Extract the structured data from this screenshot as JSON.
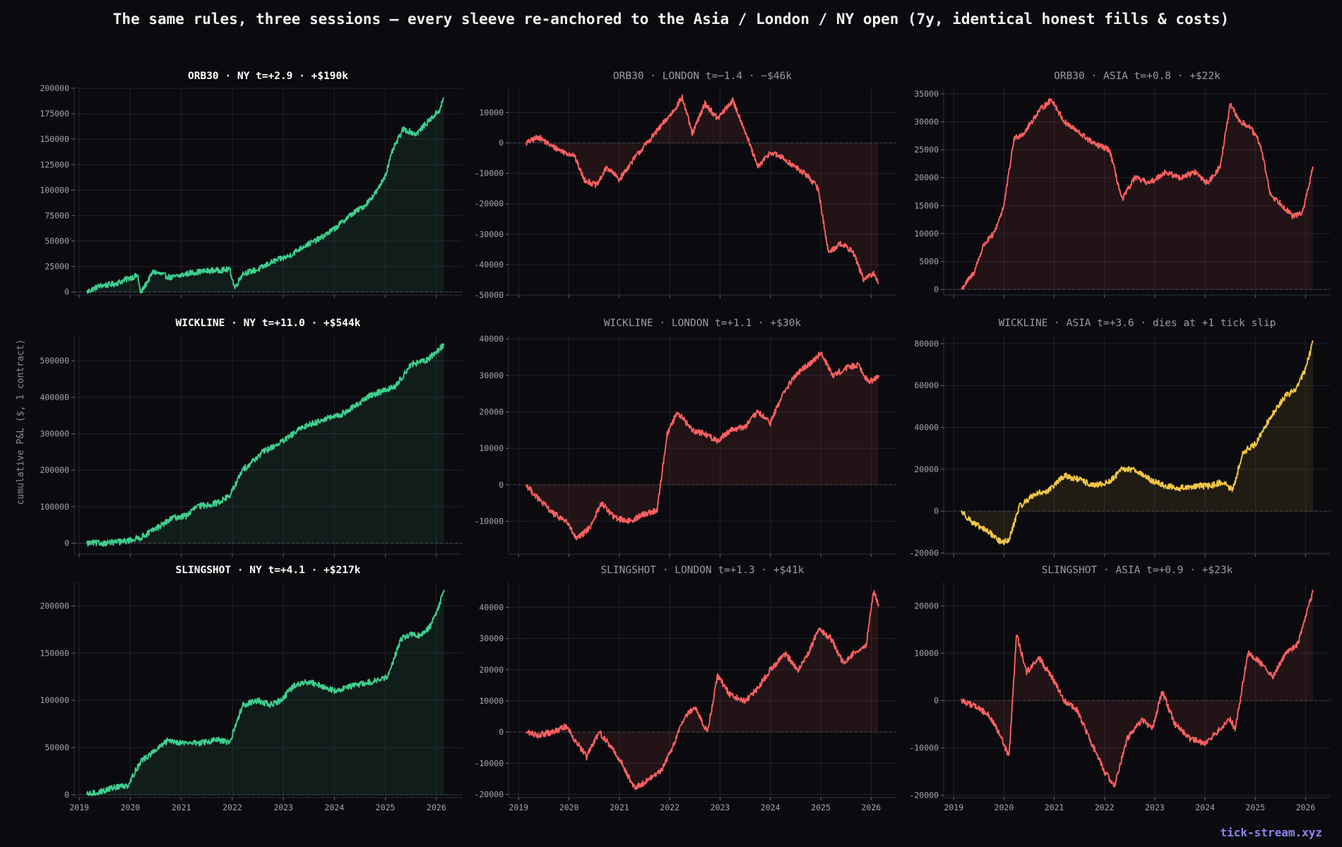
{
  "figure": {
    "title": "The same rules, three sessions — every sleeve re-anchored to the Asia / London / NY open (7y, identical honest fills & costs)",
    "ylabel": "cumulative P&L ($, 1 contract)",
    "watermark": "tick-stream.xyz"
  },
  "chart_data": [
    {
      "id": "orb30-ny",
      "type": "line",
      "title": "ORB30 · NY   t=+2.9 · +$190k",
      "emphasis": true,
      "color": "#3ecf8e",
      "fill": true,
      "xlim": [
        2018.9,
        2026.5
      ],
      "ylim": [
        -3000,
        200000
      ],
      "yticks": [
        0,
        25000,
        50000,
        75000,
        100000,
        125000,
        150000,
        175000,
        200000
      ],
      "xticks": [
        2019,
        2020,
        2021,
        2022,
        2023,
        2024,
        2025,
        2026
      ],
      "x": [
        2019.15,
        2019.4,
        2019.7,
        2020.0,
        2020.15,
        2020.2,
        2020.45,
        2020.8,
        2021.2,
        2021.6,
        2021.95,
        2022.05,
        2022.2,
        2022.5,
        2022.8,
        2023.1,
        2023.4,
        2023.7,
        2024.0,
        2024.3,
        2024.6,
        2024.85,
        2025.0,
        2025.15,
        2025.35,
        2025.6,
        2025.85,
        2026.05,
        2026.15
      ],
      "y": [
        0,
        6000,
        8000,
        14000,
        16000,
        -1500,
        20000,
        14000,
        19000,
        21000,
        22000,
        4000,
        18000,
        22000,
        30000,
        35000,
        45000,
        52000,
        62000,
        75000,
        85000,
        100000,
        115000,
        140000,
        160000,
        155000,
        168000,
        178000,
        190000
      ]
    },
    {
      "id": "orb30-london",
      "type": "line",
      "title": "ORB30 · LONDON   t=−1.4 · −$46k",
      "emphasis": false,
      "color": "#ff6060",
      "fill": true,
      "xlim": [
        2018.8,
        2026.5
      ],
      "ylim": [
        -50000,
        18000
      ],
      "yticks": [
        -50000,
        -40000,
        -30000,
        -20000,
        -10000,
        0,
        10000
      ],
      "xticks": [
        2019,
        2020,
        2021,
        2022,
        2023,
        2024,
        2025,
        2026
      ],
      "x": [
        2019.15,
        2019.4,
        2019.65,
        2019.9,
        2020.1,
        2020.3,
        2020.55,
        2020.75,
        2021.0,
        2021.3,
        2021.55,
        2021.85,
        2022.05,
        2022.25,
        2022.45,
        2022.7,
        2022.95,
        2023.25,
        2023.45,
        2023.75,
        2024.0,
        2024.25,
        2024.5,
        2024.75,
        2024.95,
        2025.15,
        2025.4,
        2025.65,
        2025.85,
        2026.05,
        2026.15
      ],
      "y": [
        0,
        2000,
        -1000,
        -3000,
        -4000,
        -12000,
        -14000,
        -8000,
        -12000,
        -5000,
        0,
        6000,
        10000,
        15000,
        3000,
        13000,
        8000,
        14000,
        6000,
        -8000,
        -3000,
        -5000,
        -8000,
        -11000,
        -15000,
        -36000,
        -33000,
        -36000,
        -45000,
        -43000,
        -46000
      ]
    },
    {
      "id": "orb30-asia",
      "type": "line",
      "title": "ORB30 · ASIA   t=+0.8 · +$22k",
      "emphasis": false,
      "color": "#ff6060",
      "fill": true,
      "xlim": [
        2018.8,
        2026.5
      ],
      "ylim": [
        -1000,
        36000
      ],
      "yticks": [
        0,
        5000,
        10000,
        15000,
        20000,
        25000,
        30000,
        35000
      ],
      "xticks": [
        2019,
        2020,
        2021,
        2022,
        2023,
        2024,
        2025,
        2026
      ],
      "x": [
        2019.15,
        2019.4,
        2019.6,
        2019.8,
        2020.0,
        2020.2,
        2020.4,
        2020.7,
        2020.95,
        2021.2,
        2021.5,
        2021.8,
        2022.1,
        2022.35,
        2022.6,
        2022.9,
        2023.2,
        2023.5,
        2023.8,
        2024.05,
        2024.3,
        2024.5,
        2024.7,
        2024.9,
        2025.1,
        2025.3,
        2025.55,
        2025.75,
        2025.95,
        2026.15
      ],
      "y": [
        0,
        3000,
        8000,
        10000,
        15000,
        27000,
        28000,
        32000,
        34000,
        30000,
        28000,
        26000,
        25000,
        16000,
        20000,
        19000,
        21000,
        20000,
        21000,
        19000,
        22000,
        33000,
        30000,
        29000,
        26000,
        17000,
        15000,
        13000,
        14000,
        22000
      ]
    },
    {
      "id": "wickline-ny",
      "type": "line",
      "title": "WICKLINE · NY   t=+11.0 · +$544k",
      "emphasis": true,
      "color": "#3ecf8e",
      "fill": true,
      "xlim": [
        2018.9,
        2026.5
      ],
      "ylim": [
        -30000,
        570000
      ],
      "yticks": [
        0,
        100000,
        200000,
        300000,
        400000,
        500000
      ],
      "xticks": [
        2019,
        2020,
        2021,
        2022,
        2023,
        2024,
        2025,
        2026
      ],
      "x": [
        2019.15,
        2019.5,
        2019.9,
        2020.2,
        2020.5,
        2020.85,
        2021.1,
        2021.3,
        2021.7,
        2021.95,
        2022.2,
        2022.6,
        2023.0,
        2023.4,
        2023.8,
        2024.1,
        2024.4,
        2024.7,
        2025.0,
        2025.2,
        2025.5,
        2025.8,
        2026.0,
        2026.15
      ],
      "y": [
        0,
        0,
        5000,
        15000,
        40000,
        70000,
        75000,
        100000,
        110000,
        130000,
        200000,
        250000,
        280000,
        320000,
        340000,
        350000,
        375000,
        405000,
        420000,
        430000,
        490000,
        500000,
        525000,
        544000
      ]
    },
    {
      "id": "wickline-london",
      "type": "line",
      "title": "WICKLINE · LONDON   t=+1.1 · +$30k",
      "emphasis": false,
      "color": "#ff6060",
      "fill": true,
      "xlim": [
        2018.8,
        2026.5
      ],
      "ylim": [
        -19000,
        41000
      ],
      "yticks": [
        -10000,
        0,
        10000,
        20000,
        30000,
        40000
      ],
      "xticks": [
        2019,
        2020,
        2021,
        2022,
        2023,
        2024,
        2025,
        2026
      ],
      "x": [
        2019.15,
        2019.4,
        2019.7,
        2019.95,
        2020.15,
        2020.4,
        2020.65,
        2020.9,
        2021.2,
        2021.5,
        2021.75,
        2021.95,
        2022.15,
        2022.45,
        2022.7,
        2022.95,
        2023.2,
        2023.5,
        2023.75,
        2024.0,
        2024.25,
        2024.5,
        2024.75,
        2025.0,
        2025.25,
        2025.5,
        2025.75,
        2025.95,
        2026.15
      ],
      "y": [
        0,
        -4000,
        -8000,
        -10000,
        -15000,
        -12000,
        -5000,
        -9000,
        -10000,
        -8000,
        -7000,
        14000,
        20000,
        15000,
        14000,
        12000,
        15000,
        16000,
        20000,
        17000,
        25000,
        30000,
        33000,
        36000,
        30000,
        32000,
        33000,
        28000,
        30000
      ]
    },
    {
      "id": "wickline-asia",
      "type": "line",
      "title": "WICKLINE · ASIA   t=+3.6 · dies at +1 tick slip",
      "emphasis": false,
      "color": "#f2c744",
      "fill": true,
      "xlim": [
        2018.8,
        2026.5
      ],
      "ylim": [
        -20500,
        84000
      ],
      "yticks": [
        -20000,
        0,
        20000,
        40000,
        60000,
        80000
      ],
      "xticks": [
        2019,
        2020,
        2021,
        2022,
        2023,
        2024,
        2025,
        2026
      ],
      "x": [
        2019.15,
        2019.4,
        2019.7,
        2019.95,
        2020.1,
        2020.3,
        2020.6,
        2020.9,
        2021.2,
        2021.5,
        2021.8,
        2022.1,
        2022.35,
        2022.6,
        2022.9,
        2023.2,
        2023.5,
        2023.8,
        2024.1,
        2024.35,
        2024.55,
        2024.75,
        2025.0,
        2025.3,
        2025.6,
        2025.8,
        2026.0,
        2026.15
      ],
      "y": [
        0,
        -6000,
        -10000,
        -15000,
        -14000,
        2000,
        8000,
        10000,
        17000,
        15000,
        12000,
        14000,
        20000,
        20000,
        15000,
        12000,
        11000,
        12000,
        12000,
        14000,
        10000,
        28000,
        32000,
        45000,
        55000,
        58000,
        68000,
        81000
      ]
    },
    {
      "id": "slingshot-ny",
      "type": "line",
      "title": "SLINGSHOT · NY   t=+4.1 · +$217k",
      "emphasis": true,
      "color": "#3ecf8e",
      "fill": true,
      "xlim": [
        2018.9,
        2026.5
      ],
      "ylim": [
        -3000,
        225000
      ],
      "yticks": [
        0,
        50000,
        100000,
        150000,
        200000
      ],
      "xticks": [
        2019,
        2020,
        2021,
        2022,
        2023,
        2024,
        2025,
        2026
      ],
      "x": [
        2019.15,
        2019.4,
        2019.7,
        2019.95,
        2020.2,
        2020.45,
        2020.75,
        2021.0,
        2021.4,
        2021.7,
        2021.95,
        2022.2,
        2022.5,
        2022.75,
        2022.95,
        2023.2,
        2023.5,
        2023.75,
        2024.0,
        2024.3,
        2024.6,
        2024.9,
        2025.05,
        2025.3,
        2025.5,
        2025.7,
        2025.9,
        2026.05,
        2026.15
      ],
      "y": [
        0,
        3000,
        8000,
        10000,
        35000,
        45000,
        58000,
        55000,
        55000,
        58000,
        55000,
        95000,
        100000,
        95000,
        100000,
        115000,
        120000,
        115000,
        110000,
        115000,
        118000,
        122000,
        125000,
        165000,
        170000,
        168000,
        180000,
        200000,
        217000
      ]
    },
    {
      "id": "slingshot-london",
      "type": "line",
      "title": "SLINGSHOT · LONDON   t=+1.3 · +$41k",
      "emphasis": false,
      "color": "#ff6060",
      "fill": true,
      "xlim": [
        2018.8,
        2026.5
      ],
      "ylim": [
        -21000,
        48000
      ],
      "yticks": [
        -20000,
        -10000,
        0,
        10000,
        20000,
        30000,
        40000
      ],
      "xticks": [
        2019,
        2020,
        2021,
        2022,
        2023,
        2024,
        2025,
        2026
      ],
      "x": [
        2019.15,
        2019.4,
        2019.7,
        2019.95,
        2020.1,
        2020.35,
        2020.6,
        2020.85,
        2021.05,
        2021.3,
        2021.6,
        2021.85,
        2022.05,
        2022.3,
        2022.5,
        2022.75,
        2022.95,
        2023.2,
        2023.5,
        2023.75,
        2024.0,
        2024.3,
        2024.55,
        2024.75,
        2024.95,
        2025.2,
        2025.45,
        2025.7,
        2025.9,
        2026.05,
        2026.15
      ],
      "y": [
        0,
        -1000,
        0,
        2000,
        -2000,
        -8000,
        0,
        -5000,
        -10000,
        -18000,
        -15000,
        -12000,
        -5000,
        5000,
        8000,
        0,
        18000,
        12000,
        10000,
        14000,
        20000,
        25000,
        20000,
        25000,
        33000,
        30000,
        22000,
        26000,
        28000,
        45000,
        41000
      ]
    },
    {
      "id": "slingshot-asia",
      "type": "line",
      "title": "SLINGSHOT · ASIA   t=+0.9 · +$23k",
      "emphasis": false,
      "color": "#ff6060",
      "fill": true,
      "xlim": [
        2018.8,
        2026.5
      ],
      "ylim": [
        -20500,
        25000
      ],
      "yticks": [
        -20000,
        -10000,
        0,
        10000,
        20000
      ],
      "xticks": [
        2019,
        2020,
        2021,
        2022,
        2023,
        2024,
        2025,
        2026
      ],
      "x": [
        2019.15,
        2019.4,
        2019.7,
        2019.95,
        2020.1,
        2020.25,
        2020.45,
        2020.7,
        2020.95,
        2021.2,
        2021.45,
        2021.7,
        2022.0,
        2022.2,
        2022.45,
        2022.75,
        2022.95,
        2023.15,
        2023.4,
        2023.7,
        2024.0,
        2024.3,
        2024.5,
        2024.6,
        2024.85,
        2025.1,
        2025.35,
        2025.6,
        2025.85,
        2026.0,
        2026.15
      ],
      "y": [
        0,
        -1000,
        -3000,
        -8000,
        -12000,
        14000,
        6000,
        9000,
        5000,
        0,
        -2000,
        -8000,
        -15000,
        -18000,
        -8000,
        -4000,
        -6000,
        2000,
        -5000,
        -8000,
        -9000,
        -6000,
        -4000,
        -6000,
        10000,
        8000,
        5000,
        10000,
        12000,
        18000,
        23000
      ]
    }
  ]
}
